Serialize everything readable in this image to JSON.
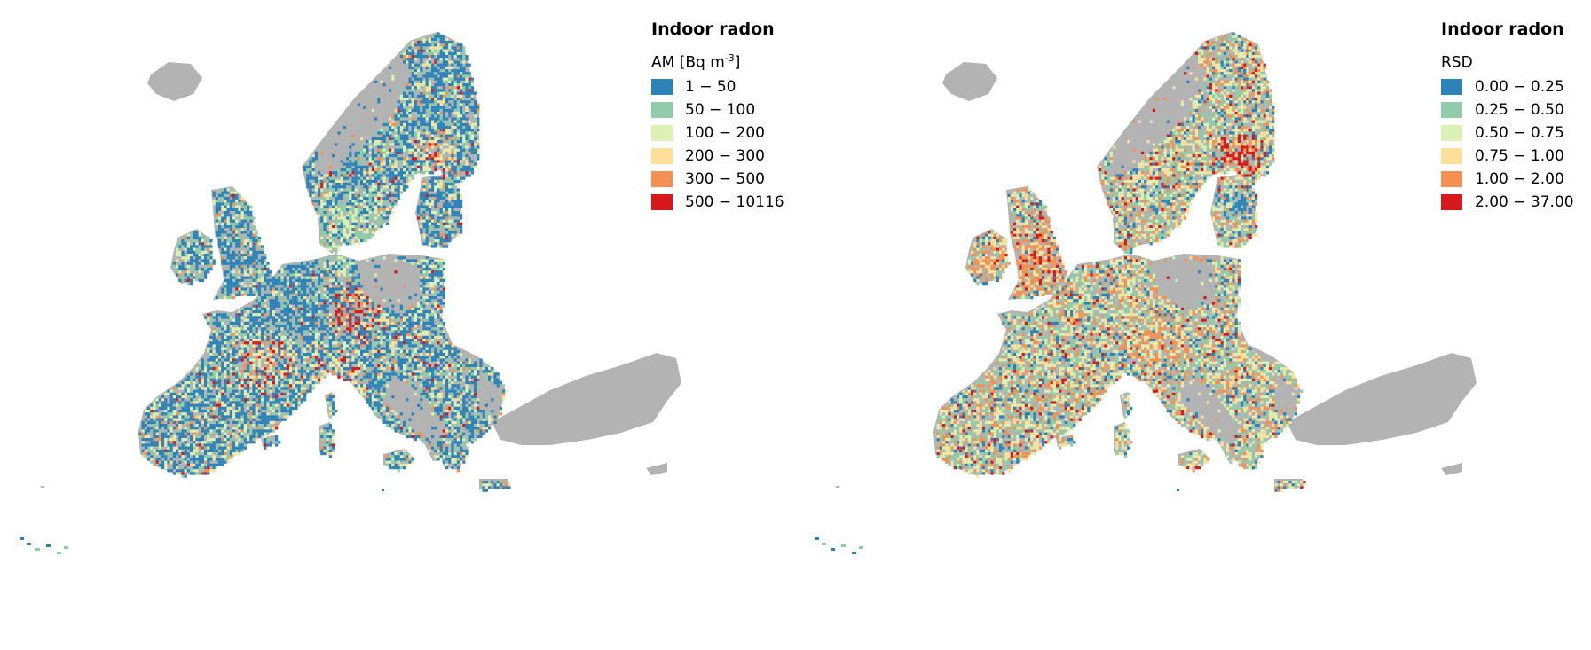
{
  "maps": [
    {
      "id": "am",
      "legend": {
        "title": "Indoor radon",
        "subtitle_main": "AM [Bq m",
        "subtitle_sup": "-3",
        "subtitle_end": "]",
        "classes": [
          {
            "label": "1 − 50",
            "color": "#2b83ba"
          },
          {
            "label": "50 − 100",
            "color": "#91cba9"
          },
          {
            "label": "100 − 200",
            "color": "#ddf1b4"
          },
          {
            "label": "200 − 300",
            "color": "#fedf99"
          },
          {
            "label": "300 − 500",
            "color": "#f59053"
          },
          {
            "label": "500 − 10116",
            "color": "#d7191c"
          }
        ]
      },
      "palette_weights": [
        0.52,
        0.18,
        0.16,
        0.07,
        0.05,
        0.02
      ]
    },
    {
      "id": "rsd",
      "legend": {
        "title": "Indoor radon",
        "subtitle_main": "RSD",
        "subtitle_sup": "",
        "subtitle_end": "",
        "classes": [
          {
            "label": "0.00 − 0.25",
            "color": "#2b83ba"
          },
          {
            "label": "0.25 − 0.50",
            "color": "#91cba9"
          },
          {
            "label": "0.50 − 0.75",
            "color": "#ddf1b4"
          },
          {
            "label": "0.75 − 1.00",
            "color": "#fedf99"
          },
          {
            "label": "1.00 − 2.00",
            "color": "#f59053"
          },
          {
            "label": "2.00 − 37.00",
            "color": "#d7191c"
          }
        ]
      },
      "palette_weights": [
        0.14,
        0.27,
        0.2,
        0.17,
        0.17,
        0.05
      ]
    }
  ],
  "land_color": "#b3b3b3",
  "nodata_color": "#b3b3b3"
}
